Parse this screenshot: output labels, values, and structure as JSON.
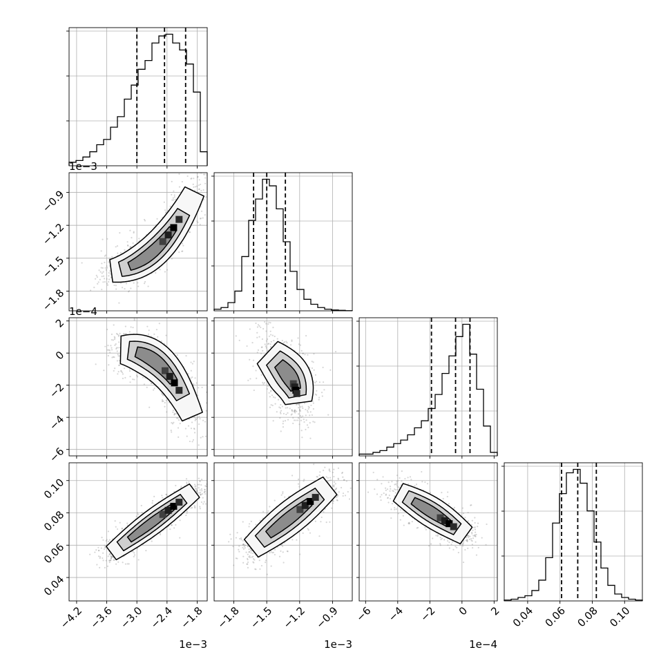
{
  "chart_data": {
    "type": "corner",
    "grid": true,
    "parameters": [
      {
        "name": "",
        "range": [
          -0.00435,
          -0.0016
        ],
        "ticks": [
          -0.0042,
          -0.0036,
          -0.003,
          -0.0024,
          -0.0018
        ],
        "tick_labels": [
          "−4.2",
          "−3.6",
          "−3.0",
          "−2.4",
          "−1.8"
        ],
        "offset_label": "1e−3",
        "quantiles": [
          -0.003,
          -0.00245,
          -0.00203
        ],
        "hist_counts": [
          2,
          3,
          5,
          8,
          12,
          15,
          22,
          28,
          38,
          46,
          55,
          60,
          70,
          74,
          75,
          70,
          66,
          58,
          42,
          8
        ]
      },
      {
        "name": "",
        "range": [
          -0.00198,
          -0.00072
        ],
        "ticks": [
          -0.0018,
          -0.0015,
          -0.0012,
          -0.0009
        ],
        "tick_labels": [
          "−1.8",
          "−1.5",
          "−1.2",
          "−0.9"
        ],
        "offset_label": "1e−3",
        "quantiles": [
          -0.00162,
          -0.0015,
          -0.00133
        ],
        "hist_counts": [
          1,
          2,
          5,
          12,
          33,
          55,
          68,
          80,
          76,
          62,
          42,
          24,
          13,
          7,
          4,
          2,
          1,
          0.5,
          0.3,
          0.1
        ]
      },
      {
        "name": "",
        "range": [
          -0.00064,
          0.00022
        ],
        "ticks": [
          -0.0006,
          -0.0004,
          -0.0002,
          0.0,
          0.0002
        ],
        "tick_labels": [
          "−6",
          "−4",
          "−2",
          "0",
          "2"
        ],
        "offset_label": "1e−4",
        "quantiles": [
          -0.00019,
          -4e-05,
          5e-05
        ],
        "hist_counts": [
          1,
          1,
          2,
          3,
          5,
          7,
          9,
          12,
          16,
          20,
          27,
          35,
          47,
          57,
          68,
          75,
          58,
          38,
          17,
          2
        ]
      },
      {
        "name": "",
        "range": [
          0.0255,
          0.111
        ],
        "ticks": [
          0.04,
          0.06,
          0.08,
          0.1
        ],
        "tick_labels": [
          "0.04",
          "0.06",
          "0.08",
          "0.10"
        ],
        "offset_label": "",
        "quantiles": [
          0.061,
          0.071,
          0.0825
        ],
        "hist_counts": [
          0.5,
          1,
          2,
          3,
          6,
          12,
          25,
          45,
          62,
          74,
          76,
          68,
          52,
          34,
          19,
          9,
          4,
          2,
          1,
          0.5
        ]
      }
    ],
    "density_colors": {
      "scatter": "#8a8a8a",
      "contour": "#000000",
      "levels": [
        "#f5f5f5",
        "#c2c2c2",
        "#7a7a7a",
        "#000000"
      ]
    }
  }
}
